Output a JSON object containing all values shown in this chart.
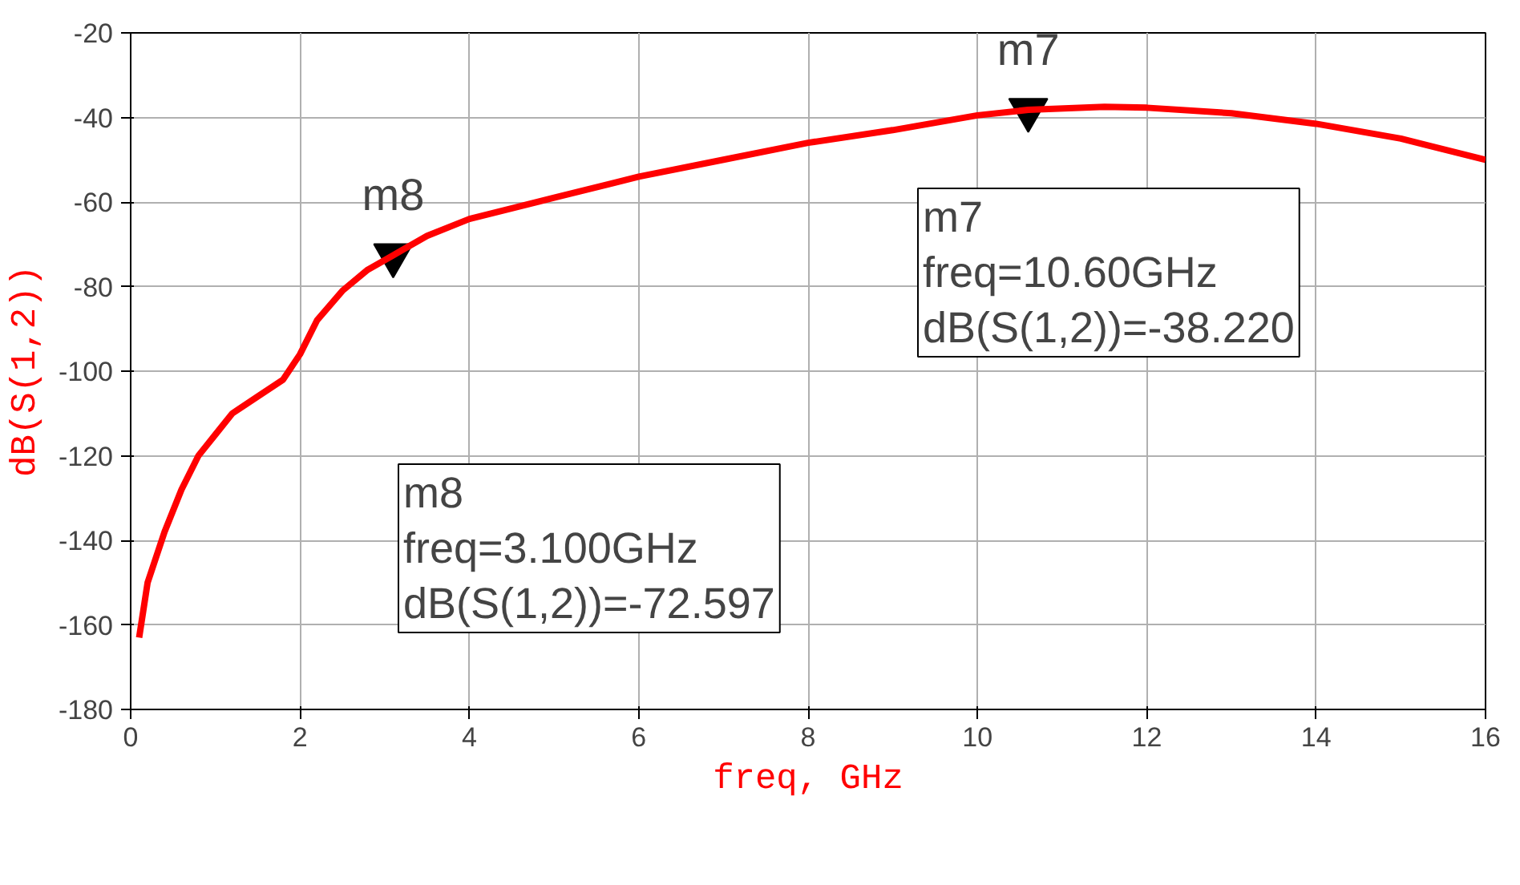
{
  "chart_data": {
    "type": "line",
    "xlabel": "freq, GHz",
    "ylabel": "dB(S(1,2))",
    "xlim": [
      0,
      16
    ],
    "ylim": [
      -180,
      -20
    ],
    "xticks": [
      0,
      2,
      4,
      6,
      8,
      10,
      12,
      14,
      16
    ],
    "yticks": [
      -180,
      -160,
      -140,
      -120,
      -100,
      -80,
      -60,
      -40,
      -20
    ],
    "grid": true,
    "series": [
      {
        "color": "#ff0000",
        "x": [
          0.1,
          0.2,
          0.4,
          0.6,
          0.8,
          1.0,
          1.2,
          1.5,
          1.8,
          2.0,
          2.2,
          2.5,
          2.8,
          3.1,
          3.5,
          4,
          5,
          6,
          7,
          8,
          9,
          10,
          10.6,
          11.5,
          12,
          13,
          14,
          15,
          16
        ],
        "values": [
          -163,
          -150,
          -138,
          -128,
          -120,
          -115,
          -110,
          -106,
          -102,
          -96,
          -88,
          -81,
          -76,
          -72.6,
          -68,
          -64,
          -59,
          -54,
          -50,
          -46,
          -43,
          -39.5,
          -38.2,
          -37.5,
          -37.7,
          -39,
          -41.5,
          -45,
          -50
        ]
      },
      {
        "type": "scatter",
        "marker": "triangle",
        "color": "#000000",
        "x": [
          3.1,
          10.6
        ],
        "values": [
          -72.6,
          -38.2
        ]
      }
    ],
    "annotations": [
      {
        "text": "m8",
        "x": 3.1,
        "y": -72.597
      },
      {
        "text": "m7",
        "x": 10.6,
        "y": -38.22
      },
      "m8\nfreq=3.100GHz\ndB(S(1,2))=-72.597",
      "m7\nfreq=10.60GHz\ndB(S(1,2))=-38.220"
    ]
  }
}
